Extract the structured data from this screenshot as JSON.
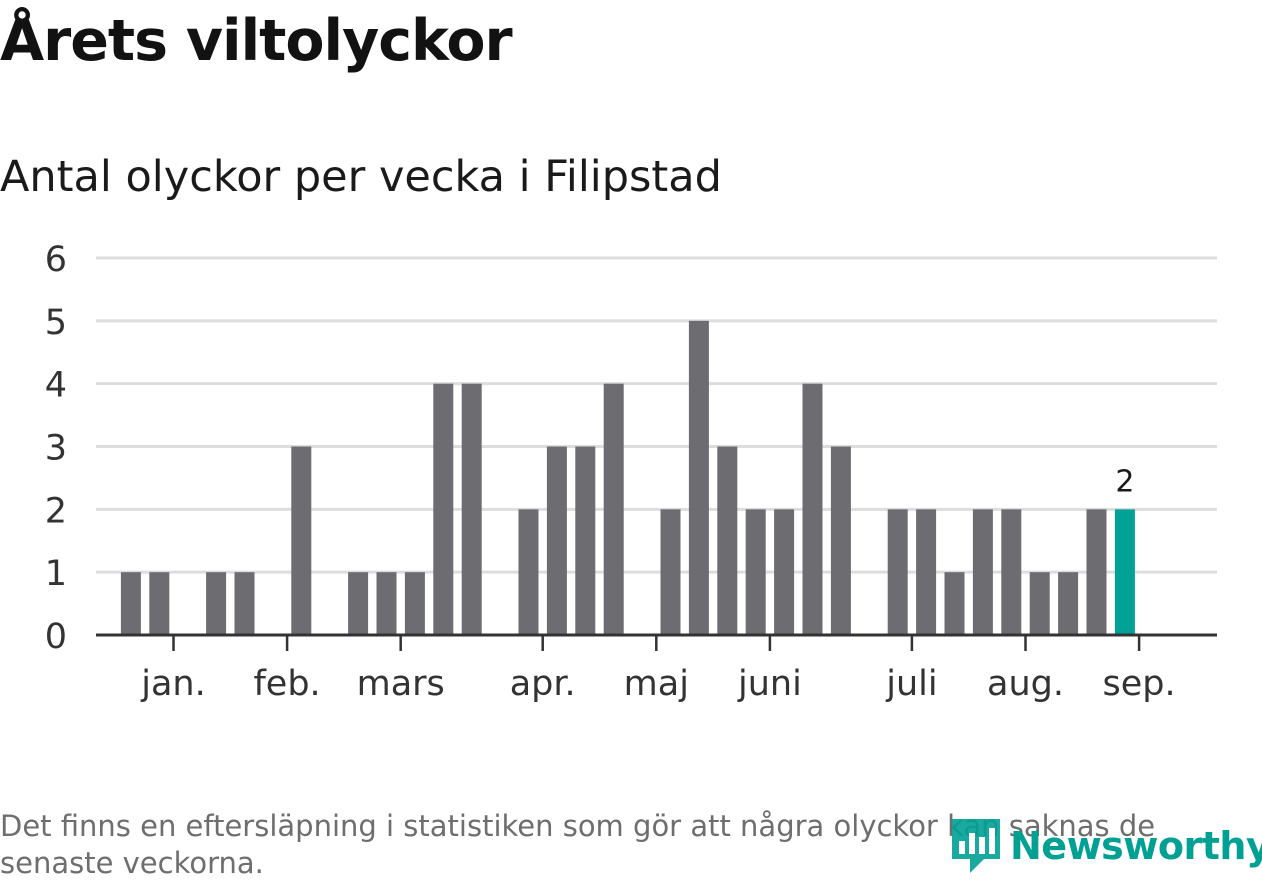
{
  "title": "Årets viltolyckor",
  "subtitle": "Antal olyckor per vecka i Filipstad",
  "footnote": "Det finns en eftersläpning i statistiken som gör att några olyckor kan saknas de senaste veckorna.",
  "logo": {
    "text": "Newsworthy",
    "icon": "newsworthy-logo-icon"
  },
  "colors": {
    "bar": "#6d6c71",
    "highlight": "#00a298",
    "grid": "#dddddd",
    "axis": "#333333",
    "text": "#333333",
    "brand": "#00a093"
  },
  "chart_data": {
    "type": "bar",
    "title": "Antal olyckor per vecka i Filipstad",
    "ylim": [
      0,
      6
    ],
    "yticks": [
      0,
      1,
      2,
      3,
      4,
      5,
      6
    ],
    "grid": true,
    "week_values": [
      0,
      1,
      1,
      0,
      1,
      1,
      0,
      3,
      0,
      1,
      1,
      1,
      4,
      4,
      0,
      2,
      3,
      3,
      4,
      0,
      2,
      5,
      3,
      2,
      2,
      4,
      3,
      0,
      2,
      2,
      1,
      2,
      2,
      1,
      1,
      2,
      2
    ],
    "highlight_index": 36,
    "highlight_label": "2",
    "month_labels": [
      {
        "label": "jan.",
        "week": 2.5
      },
      {
        "label": "feb.",
        "week": 6.5
      },
      {
        "label": "mars",
        "week": 10.5
      },
      {
        "label": "apr.",
        "week": 15.5
      },
      {
        "label": "maj",
        "week": 19.5
      },
      {
        "label": "juni",
        "week": 23.5
      },
      {
        "label": "juli",
        "week": 28.5
      },
      {
        "label": "aug.",
        "week": 32.5
      },
      {
        "label": "sep.",
        "week": 36.5
      }
    ]
  }
}
